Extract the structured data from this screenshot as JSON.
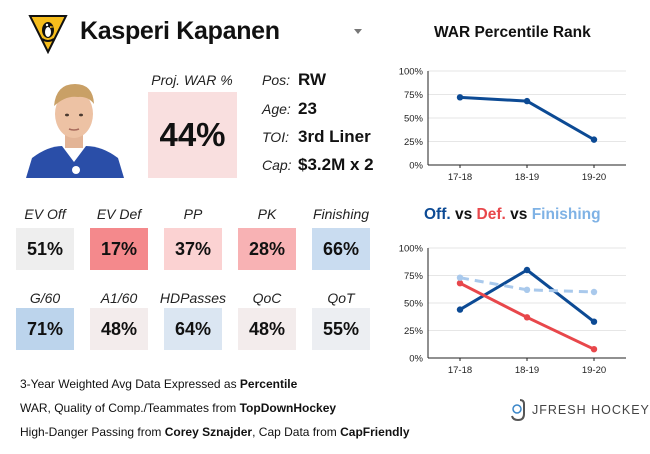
{
  "player": {
    "name": "Kasperi Kapanen",
    "team_logo": "penguins-logo-icon"
  },
  "proj_war": {
    "label": "Proj. WAR %",
    "value": "44%"
  },
  "info": [
    {
      "key": "Pos:",
      "value": "RW"
    },
    {
      "key": "Age:",
      "value": "23"
    },
    {
      "key": "TOI:",
      "value": "3rd Liner"
    },
    {
      "key": "Cap:",
      "value": "$3.2M x 2"
    }
  ],
  "stats": [
    {
      "label": "EV Off",
      "value": "51%",
      "color": "#eeeeee"
    },
    {
      "label": "EV Def",
      "value": "17%",
      "color": "#f4898c"
    },
    {
      "label": "PP",
      "value": "37%",
      "color": "#fbd2d2"
    },
    {
      "label": "PK",
      "value": "28%",
      "color": "#f8b2b4"
    },
    {
      "label": "Finishing",
      "value": "66%",
      "color": "#c9dcf0"
    },
    {
      "label": "G/60",
      "value": "71%",
      "color": "#bcd4ec"
    },
    {
      "label": "A1/60",
      "value": "48%",
      "color": "#f3ecec"
    },
    {
      "label": "HDPasses",
      "value": "64%",
      "color": "#dbe6f2"
    },
    {
      "label": "QoC",
      "value": "48%",
      "color": "#f3ecec"
    },
    {
      "label": "QoT",
      "value": "55%",
      "color": "#eceef2"
    }
  ],
  "footer": {
    "line1_text": "3-Year Weighted Avg Data Expressed as ",
    "line1_bold": "Percentile",
    "line2_text": "WAR, Quality of Comp./Teammates from ",
    "line2_bold": "TopDownHockey",
    "line3_text1": "High-Danger Passing from ",
    "line3_bold1": "Corey Sznajder",
    "line3_text2": ", Cap Data from ",
    "line3_bold2": "CapFriendly"
  },
  "brand": {
    "name": "JFRESH HOCKEY"
  },
  "chart_data": [
    {
      "type": "line",
      "title": "WAR Percentile Rank",
      "categories": [
        "17-18",
        "18-19",
        "19-20"
      ],
      "ylim": [
        0,
        100
      ],
      "yticks": [
        "0%",
        "25%",
        "50%",
        "75%",
        "100%"
      ],
      "grid": true,
      "series": [
        {
          "values": [
            72,
            68,
            27
          ],
          "color": "#0c4a94"
        }
      ]
    },
    {
      "type": "line",
      "title_parts": [
        {
          "text": "Off.",
          "color": "#0c4a94"
        },
        {
          "text": " vs ",
          "color": "#111111"
        },
        {
          "text": "Def.",
          "color": "#e8474b"
        },
        {
          "text": " vs ",
          "color": "#111111"
        },
        {
          "text": "Finishing",
          "color": "#7fb2e5"
        }
      ],
      "categories": [
        "17-18",
        "18-19",
        "19-20"
      ],
      "ylim": [
        0,
        100
      ],
      "yticks": [
        "0%",
        "25%",
        "50%",
        "75%",
        "100%"
      ],
      "grid": true,
      "series": [
        {
          "name": "Off.",
          "values": [
            44,
            80,
            33
          ],
          "color": "#0c4a94",
          "dashed": false
        },
        {
          "name": "Def.",
          "values": [
            68,
            37,
            8
          ],
          "color": "#e8474b",
          "dashed": false
        },
        {
          "name": "Finishing",
          "values": [
            73,
            62,
            60
          ],
          "color": "#a9c9ec",
          "dashed": true
        }
      ]
    }
  ]
}
